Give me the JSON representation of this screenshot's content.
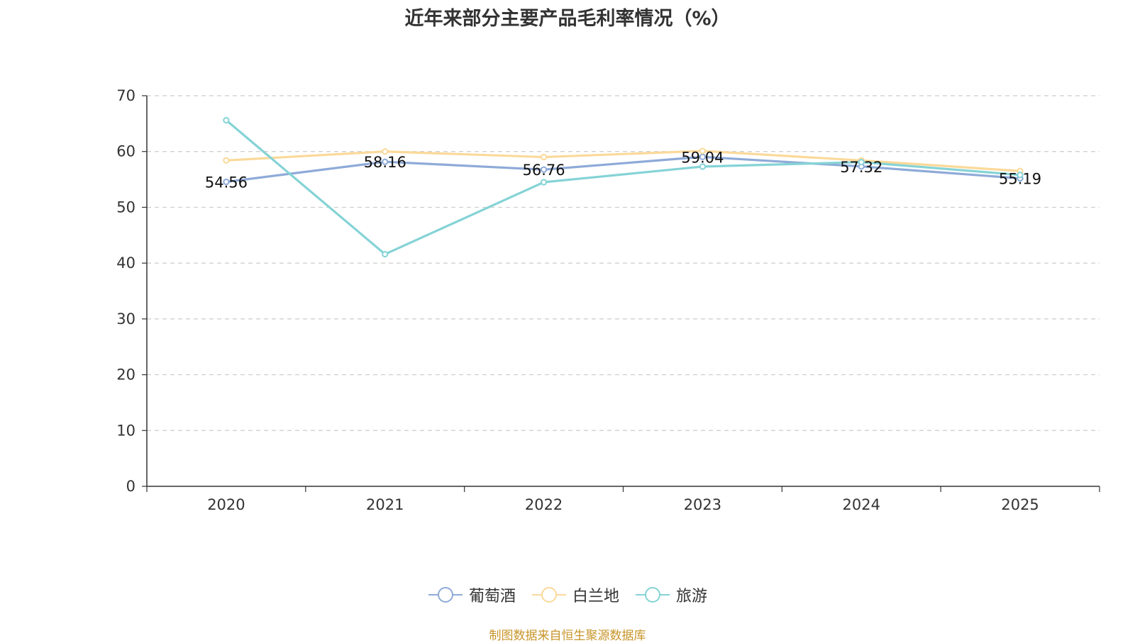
{
  "chart_data": {
    "type": "line",
    "title": "近年来部分主要产品毛利率情况（%）",
    "categories": [
      "2020",
      "2021",
      "2022",
      "2023",
      "2024",
      "2025"
    ],
    "ylim": [
      0,
      70
    ],
    "yticks": [
      0,
      10,
      20,
      30,
      40,
      50,
      60,
      70
    ],
    "grid": true,
    "legend_position": "bottom",
    "series": [
      {
        "name": "葡萄酒",
        "color": "#8eaad8",
        "values": [
          54.56,
          58.16,
          56.76,
          59.04,
          57.32,
          55.19
        ],
        "labels": [
          "54.56",
          "58.16",
          "56.76",
          "59.04",
          "57.32",
          "55.19"
        ]
      },
      {
        "name": "白兰地",
        "color": "#fbd99a",
        "values": [
          58.4,
          60.0,
          59.0,
          60.1,
          58.4,
          56.5
        ]
      },
      {
        "name": "旅游",
        "color": "#85d3d6",
        "values": [
          65.6,
          41.6,
          54.5,
          57.3,
          58.1,
          55.8
        ]
      }
    ]
  },
  "source_note": "制图数据来自恒生聚源数据库"
}
